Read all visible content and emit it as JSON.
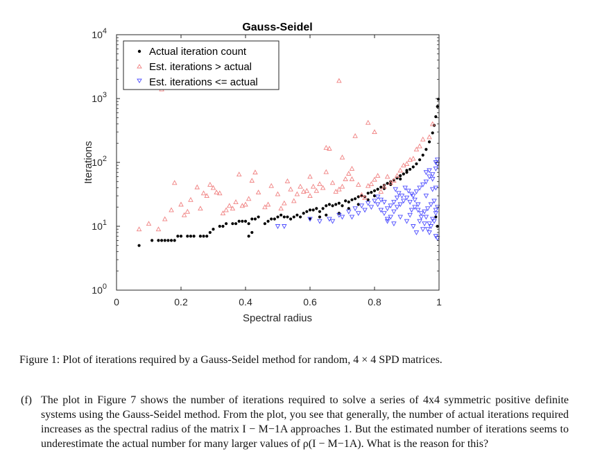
{
  "chart_data": {
    "type": "scatter",
    "title": "Gauss-Seidel",
    "xlabel": "Spectral radius",
    "ylabel": "Iterations",
    "xlim": [
      0,
      1
    ],
    "ylim": [
      1,
      10000
    ],
    "yscale": "log",
    "xticks": [
      0,
      0.2,
      0.4,
      0.6,
      0.8,
      1
    ],
    "xtick_labels": [
      "0",
      "0.2",
      "0.4",
      "0.6",
      "0.8",
      "1"
    ],
    "ytick_base": "10",
    "ytick_exponents": [
      "0",
      "1",
      "2",
      "3",
      "4"
    ],
    "legend_position": "top-left",
    "series": [
      {
        "name": "Actual iteration count",
        "marker": "dot",
        "color": "#000000",
        "points": [
          [
            0.07,
            5
          ],
          [
            0.11,
            6
          ],
          [
            0.13,
            6
          ],
          [
            0.14,
            6
          ],
          [
            0.15,
            6
          ],
          [
            0.16,
            6
          ],
          [
            0.17,
            6
          ],
          [
            0.18,
            6
          ],
          [
            0.19,
            7
          ],
          [
            0.2,
            7
          ],
          [
            0.22,
            7
          ],
          [
            0.23,
            7
          ],
          [
            0.24,
            7
          ],
          [
            0.26,
            7
          ],
          [
            0.27,
            7
          ],
          [
            0.28,
            7
          ],
          [
            0.29,
            8
          ],
          [
            0.3,
            9
          ],
          [
            0.32,
            10
          ],
          [
            0.33,
            10
          ],
          [
            0.34,
            11
          ],
          [
            0.36,
            11
          ],
          [
            0.37,
            11
          ],
          [
            0.38,
            12
          ],
          [
            0.39,
            12
          ],
          [
            0.4,
            12
          ],
          [
            0.41,
            11
          ],
          [
            0.42,
            13
          ],
          [
            0.43,
            13
          ],
          [
            0.44,
            14
          ],
          [
            0.41,
            7
          ],
          [
            0.42,
            8
          ],
          [
            0.46,
            11
          ],
          [
            0.47,
            12
          ],
          [
            0.48,
            13
          ],
          [
            0.49,
            13
          ],
          [
            0.5,
            14
          ],
          [
            0.51,
            15
          ],
          [
            0.52,
            14
          ],
          [
            0.53,
            14
          ],
          [
            0.54,
            13
          ],
          [
            0.55,
            14
          ],
          [
            0.56,
            15
          ],
          [
            0.57,
            14
          ],
          [
            0.58,
            16
          ],
          [
            0.59,
            17
          ],
          [
            0.6,
            18
          ],
          [
            0.61,
            18
          ],
          [
            0.62,
            19
          ],
          [
            0.63,
            17
          ],
          [
            0.64,
            19
          ],
          [
            0.65,
            21
          ],
          [
            0.66,
            22
          ],
          [
            0.67,
            21
          ],
          [
            0.68,
            22
          ],
          [
            0.69,
            23
          ],
          [
            0.7,
            21
          ],
          [
            0.71,
            25
          ],
          [
            0.72,
            24
          ],
          [
            0.73,
            26
          ],
          [
            0.74,
            27
          ],
          [
            0.75,
            29
          ],
          [
            0.76,
            30
          ],
          [
            0.77,
            29
          ],
          [
            0.78,
            33
          ],
          [
            0.79,
            34
          ],
          [
            0.8,
            36
          ],
          [
            0.81,
            38
          ],
          [
            0.82,
            41
          ],
          [
            0.83,
            44
          ],
          [
            0.84,
            47
          ],
          [
            0.85,
            50
          ],
          [
            0.86,
            53
          ],
          [
            0.87,
            57
          ],
          [
            0.88,
            62
          ],
          [
            0.89,
            66
          ],
          [
            0.9,
            70
          ],
          [
            0.91,
            78
          ],
          [
            0.92,
            85
          ],
          [
            0.93,
            95
          ],
          [
            0.94,
            110
          ],
          [
            0.95,
            130
          ],
          [
            0.96,
            160
          ],
          [
            0.97,
            210
          ],
          [
            0.98,
            290
          ],
          [
            0.985,
            380
          ],
          [
            0.99,
            520
          ],
          [
            0.995,
            750
          ],
          [
            0.998,
            980
          ],
          [
            0.99,
            14
          ],
          [
            0.995,
            10
          ],
          [
            0.6,
            13
          ],
          [
            0.63,
            14
          ],
          [
            0.65,
            15
          ],
          [
            0.69,
            16
          ],
          [
            0.72,
            19
          ],
          [
            0.75,
            22
          ],
          [
            0.78,
            26
          ],
          [
            0.8,
            30
          ],
          [
            0.83,
            39
          ],
          [
            0.85,
            45
          ],
          [
            0.88,
            55
          ],
          [
            0.9,
            75
          ]
        ]
      },
      {
        "name": "Est. iterations > actual",
        "marker": "triangle-up",
        "color": "#f08080",
        "points": [
          [
            0.07,
            9
          ],
          [
            0.1,
            11
          ],
          [
            0.13,
            9
          ],
          [
            0.14,
            1400
          ],
          [
            0.15,
            13
          ],
          [
            0.17,
            18
          ],
          [
            0.18,
            48
          ],
          [
            0.2,
            22
          ],
          [
            0.21,
            15
          ],
          [
            0.22,
            17
          ],
          [
            0.23,
            26
          ],
          [
            0.25,
            41
          ],
          [
            0.26,
            19
          ],
          [
            0.27,
            33
          ],
          [
            0.28,
            30
          ],
          [
            0.29,
            45
          ],
          [
            0.3,
            40
          ],
          [
            0.31,
            34
          ],
          [
            0.32,
            33
          ],
          [
            0.33,
            16
          ],
          [
            0.34,
            18
          ],
          [
            0.35,
            21
          ],
          [
            0.36,
            19
          ],
          [
            0.37,
            24
          ],
          [
            0.38,
            65
          ],
          [
            0.39,
            21
          ],
          [
            0.4,
            22
          ],
          [
            0.41,
            27
          ],
          [
            0.42,
            52
          ],
          [
            0.43,
            70
          ],
          [
            0.44,
            34
          ],
          [
            0.46,
            20
          ],
          [
            0.47,
            22
          ],
          [
            0.48,
            43
          ],
          [
            0.5,
            32
          ],
          [
            0.51,
            19
          ],
          [
            0.52,
            23
          ],
          [
            0.53,
            51
          ],
          [
            0.54,
            38
          ],
          [
            0.56,
            32
          ],
          [
            0.57,
            42
          ],
          [
            0.58,
            35
          ],
          [
            0.59,
            36
          ],
          [
            0.6,
            30
          ],
          [
            0.61,
            42
          ],
          [
            0.62,
            36
          ],
          [
            0.63,
            46
          ],
          [
            0.64,
            40
          ],
          [
            0.65,
            71
          ],
          [
            0.66,
            165
          ],
          [
            0.67,
            48
          ],
          [
            0.68,
            35
          ],
          [
            0.69,
            38
          ],
          [
            0.7,
            42
          ],
          [
            0.71,
            55
          ],
          [
            0.72,
            67
          ],
          [
            0.73,
            55
          ],
          [
            0.75,
            45
          ],
          [
            0.76,
            31
          ],
          [
            0.77,
            28
          ],
          [
            0.78,
            43
          ],
          [
            0.79,
            46
          ],
          [
            0.8,
            54
          ],
          [
            0.81,
            62
          ],
          [
            0.82,
            35
          ],
          [
            0.83,
            42
          ],
          [
            0.84,
            60
          ],
          [
            0.85,
            48
          ],
          [
            0.86,
            52
          ],
          [
            0.87,
            62
          ],
          [
            0.88,
            75
          ],
          [
            0.89,
            90
          ],
          [
            0.9,
            95
          ],
          [
            0.91,
            110
          ],
          [
            0.92,
            115
          ],
          [
            0.93,
            160
          ],
          [
            0.94,
            180
          ],
          [
            0.95,
            230
          ],
          [
            0.97,
            250
          ],
          [
            0.98,
            400
          ],
          [
            0.69,
            1900
          ],
          [
            0.78,
            420
          ],
          [
            0.74,
            260
          ],
          [
            0.7,
            120
          ],
          [
            0.65,
            170
          ],
          [
            0.55,
            25
          ],
          [
            0.6,
            60
          ],
          [
            0.73,
            80
          ],
          [
            0.8,
            300
          ]
        ]
      },
      {
        "name": "Est. iterations <= actual",
        "marker": "triangle-down",
        "color": "#4c4cff",
        "points": [
          [
            0.5,
            10
          ],
          [
            0.52,
            10
          ],
          [
            0.67,
            12
          ],
          [
            0.7,
            14
          ],
          [
            0.73,
            14
          ],
          [
            0.75,
            16
          ],
          [
            0.77,
            18
          ],
          [
            0.79,
            20
          ],
          [
            0.81,
            22
          ],
          [
            0.82,
            18
          ],
          [
            0.83,
            16
          ],
          [
            0.84,
            12
          ],
          [
            0.85,
            14
          ],
          [
            0.86,
            17
          ],
          [
            0.87,
            20
          ],
          [
            0.88,
            22
          ],
          [
            0.89,
            25
          ],
          [
            0.9,
            28
          ],
          [
            0.91,
            24
          ],
          [
            0.92,
            30
          ],
          [
            0.93,
            35
          ],
          [
            0.94,
            40
          ],
          [
            0.95,
            45
          ],
          [
            0.96,
            50
          ],
          [
            0.97,
            60
          ],
          [
            0.98,
            65
          ],
          [
            0.99,
            80
          ],
          [
            0.995,
            95
          ],
          [
            0.97,
            11
          ],
          [
            0.98,
            13
          ],
          [
            0.99,
            16
          ],
          [
            0.995,
            20
          ],
          [
            0.96,
            14
          ],
          [
            0.94,
            12
          ],
          [
            0.92,
            10
          ],
          [
            0.9,
            12
          ],
          [
            0.88,
            14
          ],
          [
            0.86,
            11
          ],
          [
            0.84,
            13
          ],
          [
            0.95,
            9
          ],
          [
            0.97,
            8
          ],
          [
            0.99,
            7
          ],
          [
            0.995,
            6.5
          ],
          [
            0.93,
            8
          ],
          [
            0.91,
            15
          ],
          [
            0.96,
            30
          ],
          [
            0.98,
            38
          ],
          [
            0.99,
            40
          ],
          [
            0.985,
            25
          ],
          [
            0.975,
            22
          ],
          [
            0.965,
            19
          ],
          [
            0.955,
            17
          ],
          [
            0.945,
            16
          ],
          [
            0.935,
            22
          ],
          [
            0.925,
            26
          ],
          [
            0.915,
            32
          ],
          [
            0.905,
            36
          ],
          [
            0.895,
            40
          ],
          [
            0.885,
            30
          ],
          [
            0.875,
            33
          ],
          [
            0.865,
            38
          ],
          [
            0.87,
            28
          ],
          [
            0.86,
            24
          ],
          [
            0.85,
            21
          ],
          [
            0.84,
            19
          ],
          [
            0.83,
            24
          ],
          [
            0.82,
            26
          ],
          [
            0.81,
            29
          ],
          [
            0.8,
            25
          ],
          [
            0.78,
            23
          ],
          [
            0.76,
            21
          ],
          [
            0.74,
            19
          ],
          [
            0.72,
            17
          ],
          [
            0.69,
            15
          ],
          [
            0.66,
            13
          ],
          [
            0.63,
            12
          ],
          [
            0.6,
            13
          ],
          [
            0.98,
            55
          ],
          [
            0.99,
            100
          ],
          [
            0.995,
            110
          ],
          [
            0.97,
            75
          ],
          [
            0.96,
            70
          ],
          [
            0.99,
            18
          ],
          [
            0.985,
            12
          ],
          [
            0.975,
            10
          ],
          [
            0.965,
            9
          ],
          [
            0.955,
            11
          ],
          [
            0.945,
            14
          ],
          [
            0.935,
            18
          ],
          [
            0.925,
            20
          ],
          [
            0.915,
            18
          ]
        ]
      }
    ]
  },
  "caption": "Figure 1: Plot of iterations required by a Gauss-Seidel method for random, 4 × 4 SPD matrices.",
  "question": {
    "label": "(f)",
    "text": "The plot in Figure 7 shows the number of iterations required to solve a series of 4x4 symmetric positive definite systems using the Gauss-Seidel method. From the plot, you see that generally, the number of actual iterations required increases as the spectral radius of the matrix I − M−1A approaches 1. But the estimated number of iterations seems to underestimate the actual number for many larger values of ρ(I − M−1A). What is the reason for this?"
  }
}
